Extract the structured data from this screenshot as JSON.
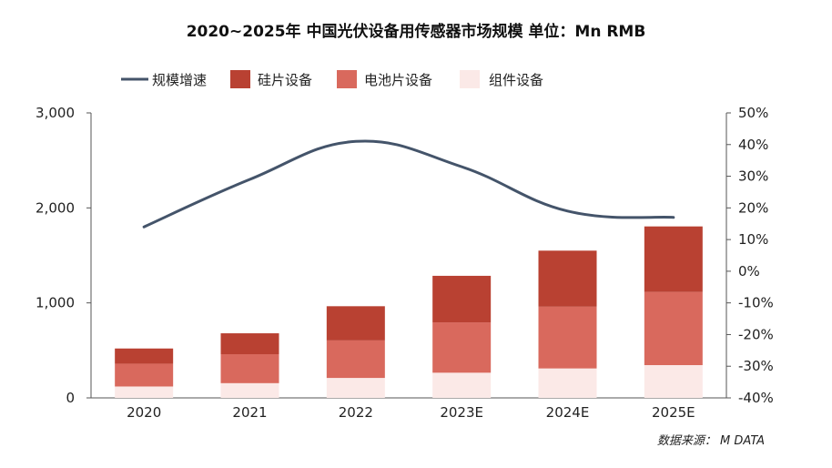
{
  "chart_data": {
    "type": "bar",
    "stacked": true,
    "title": "2020~2025年 中国光伏设备用传感器市场规模 单位：Mn RMB",
    "categories": [
      "2020",
      "2021",
      "2022",
      "2023E",
      "2024E",
      "2025E"
    ],
    "series": [
      {
        "name": "组件设备",
        "values": [
          120,
          155,
          210,
          265,
          310,
          345
        ],
        "color": "#fbe9e7"
      },
      {
        "name": "电池片设备",
        "values": [
          240,
          305,
          395,
          530,
          650,
          770
        ],
        "color": "#d9695d"
      },
      {
        "name": "硅片设备",
        "values": [
          160,
          220,
          360,
          490,
          590,
          690
        ],
        "color": "#b94132"
      }
    ],
    "line_series": {
      "name": "规模增速",
      "values": [
        14,
        29,
        41,
        33,
        19,
        17
      ],
      "color": "#44546a",
      "axis": "right"
    },
    "left_axis": {
      "min": 0,
      "max": 3000,
      "ticks": [
        "0",
        "1,000",
        "2,000",
        "3,000"
      ],
      "tick_values": [
        0,
        1000,
        2000,
        3000
      ]
    },
    "right_axis": {
      "min": -40,
      "max": 50,
      "ticks": [
        "-40%",
        "-30%",
        "-20%",
        "-10%",
        "0%",
        "10%",
        "20%",
        "30%",
        "40%",
        "50%"
      ],
      "tick_values": [
        -40,
        -30,
        -20,
        -10,
        0,
        10,
        20,
        30,
        40,
        50
      ]
    },
    "legend": [
      "规模增速",
      "硅片设备",
      "电池片设备",
      "组件设备"
    ],
    "source": "数据来源： M DATA"
  }
}
